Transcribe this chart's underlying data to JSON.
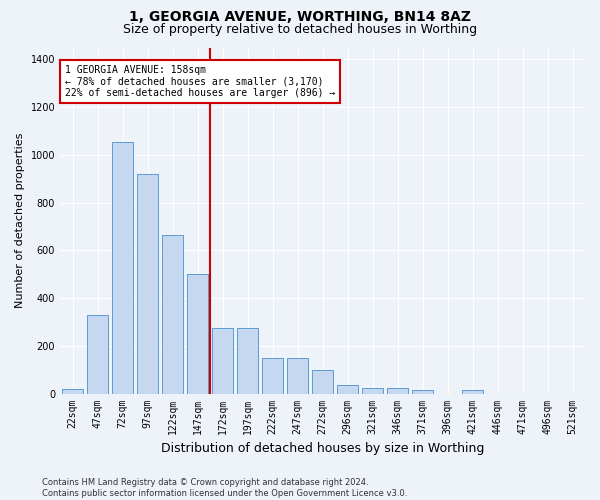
{
  "title": "1, GEORGIA AVENUE, WORTHING, BN14 8AZ",
  "subtitle": "Size of property relative to detached houses in Worthing",
  "xlabel": "Distribution of detached houses by size in Worthing",
  "ylabel": "Number of detached properties",
  "footnote": "Contains HM Land Registry data © Crown copyright and database right 2024.\nContains public sector information licensed under the Open Government Licence v3.0.",
  "bar_labels": [
    "22sqm",
    "47sqm",
    "72sqm",
    "97sqm",
    "122sqm",
    "147sqm",
    "172sqm",
    "197sqm",
    "222sqm",
    "247sqm",
    "272sqm",
    "296sqm",
    "321sqm",
    "346sqm",
    "371sqm",
    "396sqm",
    "421sqm",
    "446sqm",
    "471sqm",
    "496sqm",
    "521sqm"
  ],
  "bar_values": [
    20,
    330,
    1055,
    920,
    665,
    500,
    275,
    275,
    150,
    150,
    100,
    35,
    25,
    25,
    15,
    0,
    15,
    0,
    0,
    0,
    0
  ],
  "bar_color": "#c5d8f0",
  "bar_edge_color": "#5b9bd5",
  "annotation_label": "1 GEORGIA AVENUE: 158sqm",
  "annotation_line1": "← 78% of detached houses are smaller (3,170)",
  "annotation_line2": "22% of semi-detached houses are larger (896) →",
  "annotation_box_facecolor": "#ffffff",
  "annotation_box_edgecolor": "#cc0000",
  "line_color": "#cc0000",
  "line_x_index": 5.5,
  "ylim": [
    0,
    1450
  ],
  "yticks": [
    0,
    200,
    400,
    600,
    800,
    1000,
    1200,
    1400
  ],
  "background_color": "#eef2f9",
  "grid_color": "#ffffff",
  "title_fontsize": 10,
  "subtitle_fontsize": 9,
  "axis_label_fontsize": 8,
  "tick_fontsize": 7,
  "footnote_fontsize": 6
}
